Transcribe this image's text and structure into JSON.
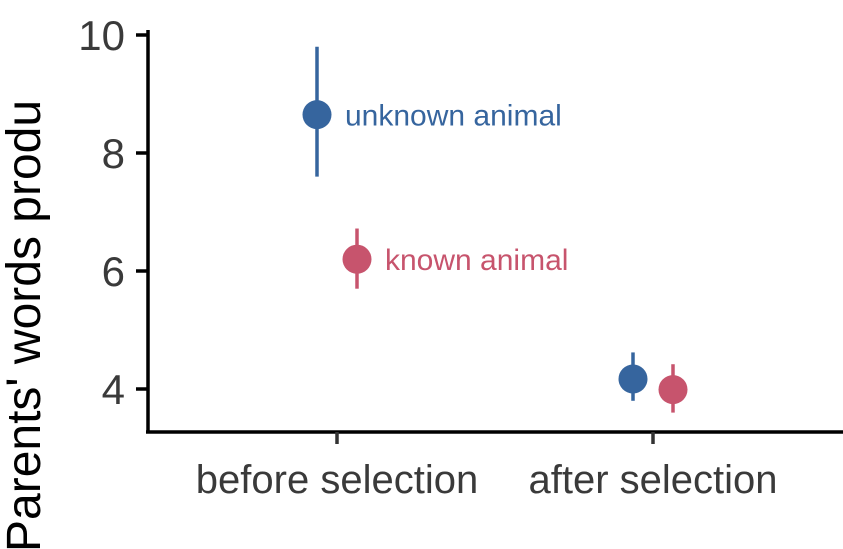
{
  "chart_data": {
    "type": "scatter",
    "title": "",
    "xlabel": "",
    "ylabel": "Parents' words produ",
    "categories": [
      "before selection",
      "after selection"
    ],
    "ylim": [
      3.3,
      10.0
    ],
    "yticks": [
      4,
      6,
      8,
      10
    ],
    "grid": false,
    "legend": "direct labels next to points",
    "error_bars": true,
    "series": [
      {
        "name": "unknown animal",
        "color": "#36659e",
        "points": [
          {
            "x": "before selection",
            "y": 8.65,
            "lower": 7.6,
            "upper": 9.8
          },
          {
            "x": "after selection",
            "y": 4.17,
            "lower": 3.8,
            "upper": 4.62
          }
        ]
      },
      {
        "name": "known animal",
        "color": "#c7546d",
        "points": [
          {
            "x": "before selection",
            "y": 6.2,
            "lower": 5.7,
            "upper": 6.72
          },
          {
            "x": "after selection",
            "y": 3.99,
            "lower": 3.6,
            "upper": 4.42
          }
        ]
      }
    ]
  }
}
